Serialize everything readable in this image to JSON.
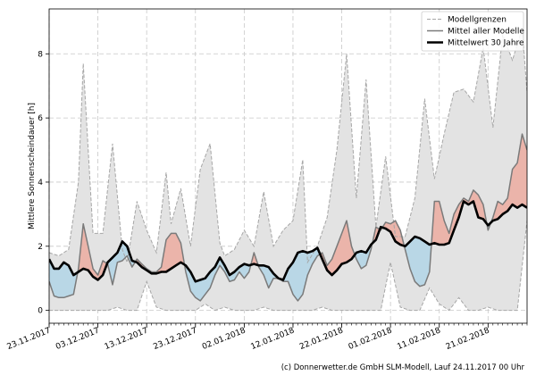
{
  "chart_data": {
    "type": "area",
    "ylabel": "Mittlere Sonnenscheindauer [h]",
    "xlabel": "",
    "ylim": [
      -0.4,
      9.4
    ],
    "yticks": [
      0,
      2,
      4,
      6,
      8
    ],
    "x_start": "2017-11-23",
    "x_end": "2018-03-01",
    "xticks": [
      "23.11.2017",
      "03.12.2017",
      "13.12.2017",
      "23.12.2017",
      "02.01.2018",
      "12.01.2018",
      "22.01.2018",
      "01.02.2018",
      "11.02.2018",
      "21.02.2018"
    ],
    "grid": true,
    "legend_position": "top-right",
    "legend": [
      "Modellgrenzen",
      "Mittel aller Modelle",
      "Mittelwert 30 Jahre"
    ],
    "series": [
      {
        "name": "Modellgrenzen",
        "role": "upper",
        "x": [
          "2017-11-23",
          "2017-11-25",
          "2017-11-27",
          "2017-11-29",
          "2017-11-30",
          "2017-12-02",
          "2017-12-04",
          "2017-12-06",
          "2017-12-08",
          "2017-12-09",
          "2017-12-11",
          "2017-12-13",
          "2017-12-15",
          "2017-12-17",
          "2017-12-18",
          "2017-12-20",
          "2017-12-22",
          "2017-12-24",
          "2017-12-26",
          "2017-12-28",
          "2017-12-29",
          "2017-12-31",
          "2018-01-02",
          "2018-01-04",
          "2018-01-06",
          "2018-01-08",
          "2018-01-10",
          "2018-01-12",
          "2018-01-14",
          "2018-01-15",
          "2018-01-17",
          "2018-01-19",
          "2018-01-21",
          "2018-01-23",
          "2018-01-25",
          "2018-01-27",
          "2018-01-29",
          "2018-01-31",
          "2018-02-02",
          "2018-02-04",
          "2018-02-06",
          "2018-02-08",
          "2018-02-10",
          "2018-02-12",
          "2018-02-14",
          "2018-02-16",
          "2018-02-18",
          "2018-02-20",
          "2018-02-22",
          "2018-02-24",
          "2018-02-26",
          "2018-02-28",
          "2018-03-01"
        ],
        "values": [
          1.8,
          1.7,
          1.9,
          4.0,
          7.7,
          2.4,
          2.4,
          5.2,
          1.9,
          1.5,
          3.4,
          2.5,
          1.8,
          4.3,
          2.7,
          3.8,
          2.0,
          4.4,
          5.2,
          2.1,
          1.7,
          1.9,
          2.5,
          2.0,
          3.7,
          2.0,
          2.5,
          2.8,
          4.7,
          1.5,
          2.0,
          2.9,
          5.0,
          8.0,
          3.5,
          7.2,
          2.6,
          4.8,
          2.3,
          2.3,
          3.5,
          6.6,
          4.1,
          5.5,
          6.8,
          6.9,
          6.5,
          8.2,
          5.7,
          8.6,
          7.8,
          8.8,
          6.8
        ]
      },
      {
        "name": "Modellgrenzen",
        "role": "lower",
        "x": [
          "2017-11-23",
          "2017-11-25",
          "2017-11-27",
          "2017-11-29",
          "2017-12-01",
          "2017-12-03",
          "2017-12-05",
          "2017-12-07",
          "2017-12-09",
          "2017-12-11",
          "2017-12-13",
          "2017-12-15",
          "2017-12-17",
          "2017-12-19",
          "2017-12-21",
          "2017-12-23",
          "2017-12-25",
          "2017-12-27",
          "2017-12-29",
          "2017-12-31",
          "2018-01-02",
          "2018-01-04",
          "2018-01-06",
          "2018-01-08",
          "2018-01-10",
          "2018-01-12",
          "2018-01-14",
          "2018-01-16",
          "2018-01-18",
          "2018-01-20",
          "2018-01-22",
          "2018-01-24",
          "2018-01-26",
          "2018-01-28",
          "2018-01-30",
          "2018-02-01",
          "2018-02-03",
          "2018-02-05",
          "2018-02-07",
          "2018-02-09",
          "2018-02-11",
          "2018-02-13",
          "2018-02-15",
          "2018-02-17",
          "2018-02-19",
          "2018-02-21",
          "2018-02-23",
          "2018-02-25",
          "2018-02-27",
          "2018-03-01"
        ],
        "values": [
          0.0,
          0.0,
          0.0,
          0.0,
          0.0,
          0.0,
          0.0,
          0.1,
          0.0,
          0.0,
          0.9,
          0.1,
          0.0,
          0.0,
          0.0,
          0.0,
          0.2,
          0.0,
          0.1,
          0.0,
          0.0,
          0.0,
          0.1,
          0.0,
          0.0,
          0.0,
          0.0,
          0.0,
          0.1,
          0.0,
          0.0,
          0.0,
          0.0,
          0.0,
          0.0,
          1.5,
          0.1,
          0.0,
          0.0,
          0.7,
          0.2,
          0.0,
          0.4,
          0.0,
          0.0,
          0.1,
          0.0,
          0.0,
          0.0,
          2.8
        ]
      },
      {
        "name": "Mittel aller Modelle",
        "x": [
          "2017-11-23",
          "2017-11-24",
          "2017-11-25",
          "2017-11-26",
          "2017-11-27",
          "2017-11-28",
          "2017-11-29",
          "2017-11-30",
          "2017-12-01",
          "2017-12-02",
          "2017-12-03",
          "2017-12-04",
          "2017-12-05",
          "2017-12-06",
          "2017-12-07",
          "2017-12-08",
          "2017-12-09",
          "2017-12-10",
          "2017-12-11",
          "2017-12-12",
          "2017-12-13",
          "2017-12-14",
          "2017-12-15",
          "2017-12-16",
          "2017-12-17",
          "2017-12-18",
          "2017-12-19",
          "2017-12-20",
          "2017-12-21",
          "2017-12-22",
          "2017-12-23",
          "2017-12-24",
          "2017-12-25",
          "2017-12-26",
          "2017-12-27",
          "2017-12-28",
          "2017-12-29",
          "2017-12-30",
          "2017-12-31",
          "2018-01-01",
          "2018-01-02",
          "2018-01-03",
          "2018-01-04",
          "2018-01-05",
          "2018-01-06",
          "2018-01-07",
          "2018-01-08",
          "2018-01-09",
          "2018-01-10",
          "2018-01-11",
          "2018-01-12",
          "2018-01-13",
          "2018-01-14",
          "2018-01-15",
          "2018-01-16",
          "2018-01-17",
          "2018-01-18",
          "2018-01-19",
          "2018-01-20",
          "2018-01-21",
          "2018-01-22",
          "2018-01-23",
          "2018-01-24",
          "2018-01-25",
          "2018-01-26",
          "2018-01-27",
          "2018-01-28",
          "2018-01-29",
          "2018-01-30",
          "2018-01-31",
          "2018-02-01",
          "2018-02-02",
          "2018-02-03",
          "2018-02-04",
          "2018-02-05",
          "2018-02-06",
          "2018-02-07",
          "2018-02-08",
          "2018-02-09",
          "2018-02-10",
          "2018-02-11",
          "2018-02-12",
          "2018-02-13",
          "2018-02-14",
          "2018-02-15",
          "2018-02-16",
          "2018-02-17",
          "2018-02-18",
          "2018-02-19",
          "2018-02-20",
          "2018-02-21",
          "2018-02-22",
          "2018-02-23",
          "2018-02-24",
          "2018-02-25",
          "2018-02-26",
          "2018-02-27",
          "2018-02-28",
          "2018-03-01"
        ],
        "values": [
          0.9,
          0.45,
          0.4,
          0.4,
          0.45,
          0.5,
          1.3,
          2.7,
          2.0,
          1.3,
          1.1,
          1.55,
          1.45,
          0.8,
          1.5,
          1.55,
          1.7,
          1.35,
          1.6,
          1.45,
          1.3,
          1.2,
          1.2,
          1.35,
          2.2,
          2.4,
          2.4,
          2.1,
          1.2,
          0.6,
          0.4,
          0.3,
          0.5,
          0.7,
          1.1,
          1.4,
          1.2,
          0.9,
          0.95,
          1.2,
          1.0,
          1.2,
          1.8,
          1.35,
          1.1,
          0.7,
          1.0,
          1.0,
          0.9,
          0.9,
          0.5,
          0.3,
          0.5,
          1.1,
          1.45,
          1.7,
          1.8,
          1.4,
          1.6,
          2.0,
          2.4,
          2.8,
          2.0,
          1.6,
          1.3,
          1.4,
          1.9,
          2.6,
          2.5,
          2.75,
          2.7,
          2.8,
          2.5,
          1.9,
          1.3,
          0.9,
          0.75,
          0.8,
          1.2,
          3.4,
          3.4,
          2.8,
          2.4,
          3.0,
          3.3,
          3.5,
          3.4,
          3.75,
          3.6,
          3.3,
          2.5,
          2.9,
          3.4,
          3.3,
          3.5,
          4.4,
          4.6,
          5.5,
          5.0
        ]
      },
      {
        "name": "Mittelwert 30 Jahre",
        "x": [
          "2017-11-23",
          "2017-11-24",
          "2017-11-25",
          "2017-11-26",
          "2017-11-27",
          "2017-11-28",
          "2017-11-29",
          "2017-11-30",
          "2017-12-01",
          "2017-12-02",
          "2017-12-03",
          "2017-12-04",
          "2017-12-05",
          "2017-12-06",
          "2017-12-07",
          "2017-12-08",
          "2017-12-09",
          "2017-12-10",
          "2017-12-11",
          "2017-12-12",
          "2017-12-13",
          "2017-12-14",
          "2017-12-15",
          "2017-12-16",
          "2017-12-17",
          "2017-12-18",
          "2017-12-19",
          "2017-12-20",
          "2017-12-21",
          "2017-12-22",
          "2017-12-23",
          "2017-12-24",
          "2017-12-25",
          "2017-12-26",
          "2017-12-27",
          "2017-12-28",
          "2017-12-29",
          "2017-12-30",
          "2017-12-31",
          "2018-01-01",
          "2018-01-02",
          "2018-01-03",
          "2018-01-04",
          "2018-01-05",
          "2018-01-06",
          "2018-01-07",
          "2018-01-08",
          "2018-01-09",
          "2018-01-10",
          "2018-01-11",
          "2018-01-12",
          "2018-01-13",
          "2018-01-14",
          "2018-01-15",
          "2018-01-16",
          "2018-01-17",
          "2018-01-18",
          "2018-01-19",
          "2018-01-20",
          "2018-01-21",
          "2018-01-22",
          "2018-01-23",
          "2018-01-24",
          "2018-01-25",
          "2018-01-26",
          "2018-01-27",
          "2018-01-28",
          "2018-01-29",
          "2018-01-30",
          "2018-01-31",
          "2018-02-01",
          "2018-02-02",
          "2018-02-03",
          "2018-02-04",
          "2018-02-05",
          "2018-02-06",
          "2018-02-07",
          "2018-02-08",
          "2018-02-09",
          "2018-02-10",
          "2018-02-11",
          "2018-02-12",
          "2018-02-13",
          "2018-02-14",
          "2018-02-15",
          "2018-02-16",
          "2018-02-17",
          "2018-02-18",
          "2018-02-19",
          "2018-02-20",
          "2018-02-21",
          "2018-02-22",
          "2018-02-23",
          "2018-02-24",
          "2018-02-25",
          "2018-02-26",
          "2018-02-27",
          "2018-02-28",
          "2018-03-01"
        ],
        "values": [
          1.6,
          1.3,
          1.3,
          1.5,
          1.4,
          1.1,
          1.2,
          1.3,
          1.25,
          1.05,
          0.95,
          1.1,
          1.5,
          1.65,
          1.8,
          2.15,
          2.0,
          1.55,
          1.5,
          1.35,
          1.25,
          1.15,
          1.15,
          1.2,
          1.2,
          1.3,
          1.4,
          1.5,
          1.4,
          1.2,
          0.9,
          0.95,
          1.0,
          1.2,
          1.35,
          1.65,
          1.4,
          1.1,
          1.2,
          1.35,
          1.45,
          1.4,
          1.45,
          1.4,
          1.4,
          1.35,
          1.15,
          1.0,
          0.95,
          1.3,
          1.5,
          1.8,
          1.85,
          1.8,
          1.85,
          1.95,
          1.6,
          1.25,
          1.1,
          1.25,
          1.45,
          1.5,
          1.6,
          1.8,
          1.85,
          1.8,
          2.05,
          2.2,
          2.6,
          2.55,
          2.45,
          2.15,
          2.05,
          2.0,
          2.15,
          2.3,
          2.25,
          2.15,
          2.05,
          2.1,
          2.05,
          2.05,
          2.1,
          2.5,
          2.9,
          3.4,
          3.3,
          3.4,
          2.9,
          2.85,
          2.65,
          2.8,
          2.85,
          3.0,
          3.1,
          3.3,
          3.2,
          3.3,
          3.2
        ]
      }
    ]
  },
  "colors": {
    "envelope_fill": "#e3e3e3",
    "envelope_line": "#a6a6a6",
    "above_fill": "#ebb4aa",
    "below_fill": "#b9d7e6",
    "model_mean_line": "#7a7a7a",
    "climate_line": "#000000",
    "grid": "#c8c8c8"
  },
  "credit_text": "(c) Donnerwetter.de GmbH SLM-Modell, Lauf 24.11.2017 00 Uhr"
}
